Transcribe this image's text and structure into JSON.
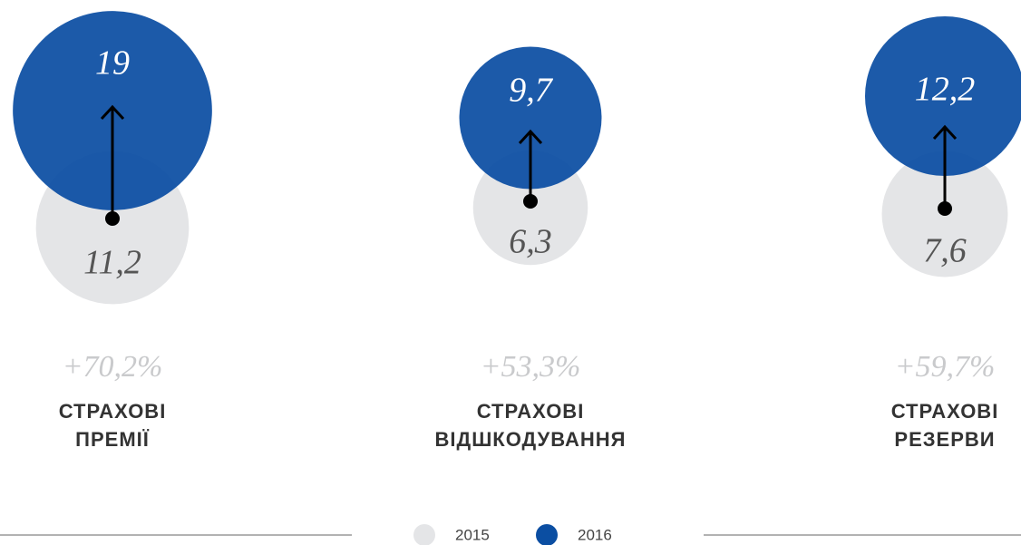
{
  "chart_data": {
    "type": "bubble-compare",
    "categories": [
      [
        "СТРАХОВІ",
        "ПРЕМІЇ"
      ],
      [
        "СТРАХОВІ",
        "ВІДШКОДУВАННЯ"
      ],
      [
        "СТРАХОВІ",
        "РЕЗЕРВИ"
      ]
    ],
    "series": [
      {
        "name": "2015",
        "color": "#e4e5e7",
        "values": [
          11.2,
          6.3,
          7.6
        ],
        "value_labels": [
          "11,2",
          "6,3",
          "7,6"
        ]
      },
      {
        "name": "2016",
        "color": "#0b4ea2",
        "values": [
          19,
          9.7,
          12.2
        ],
        "value_labels": [
          "19",
          "9,7",
          "12,2"
        ]
      }
    ],
    "changes": [
      70.2,
      53.3,
      59.7
    ],
    "change_labels": [
      "+70,2%",
      "+53,3%",
      "+59,7%"
    ]
  }
}
